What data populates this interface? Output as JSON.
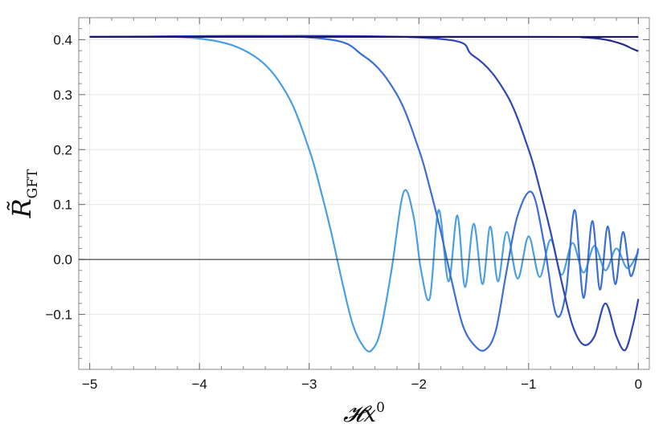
{
  "chart_data": {
    "type": "line",
    "xlabel": "𝓗x",
    "xlabel_sup": "0",
    "ylabel": "R̃",
    "ylabel_sub": "GFT",
    "xlim": [
      -5.1,
      0.1
    ],
    "ylim": [
      -0.2,
      0.44
    ],
    "x_ticks": [
      -5,
      -4,
      -3,
      -2,
      -1,
      0
    ],
    "x_tick_labels": [
      "−5",
      "−4",
      "−3",
      "−2",
      "−1",
      "0"
    ],
    "y_ticks": [
      -0.1,
      0.0,
      0.1,
      0.2,
      0.3,
      0.4
    ],
    "y_tick_labels": [
      "−0.1",
      "0.0",
      "0.1",
      "0.2",
      "0.3",
      "0.4"
    ],
    "grid": true,
    "zero_line": true,
    "series": [
      {
        "color": "#4a9fe3",
        "plateau": 0.405,
        "x": [
          -5,
          -4,
          -3.5,
          -3.2,
          -3.0,
          -2.9,
          -2.8,
          -2.7,
          -2.6,
          -2.5,
          -2.43,
          -2.35,
          -2.25,
          -2.14,
          -2.05,
          -1.98,
          -1.9,
          -1.82,
          -1.73,
          -1.65,
          -1.58,
          -1.5,
          -1.42,
          -1.35,
          -1.28,
          -1.2,
          -1.1,
          -1.0,
          -0.9,
          -0.8,
          -0.7,
          -0.6,
          -0.5,
          -0.4,
          -0.3,
          -0.2,
          -0.1,
          0
        ],
        "y": [
          0.405,
          0.402,
          0.37,
          0.3,
          0.2,
          0.13,
          0.05,
          -0.04,
          -0.12,
          -0.16,
          -0.165,
          -0.13,
          -0.02,
          0.122,
          0.08,
          -0.02,
          -0.07,
          0.09,
          -0.04,
          0.08,
          -0.05,
          0.065,
          -0.045,
          0.06,
          -0.04,
          0.05,
          -0.035,
          0.042,
          -0.032,
          0.036,
          -0.028,
          0.03,
          -0.024,
          0.025,
          -0.02,
          0.02,
          -0.016,
          0.014
        ]
      },
      {
        "color": "#3c6fd6",
        "plateau": 0.405,
        "x": [
          -5,
          -3,
          -2.5,
          -2.2,
          -2.0,
          -1.9,
          -1.8,
          -1.7,
          -1.6,
          -1.5,
          -1.4,
          -1.3,
          -1.2,
          -1.1,
          -0.97,
          -0.86,
          -0.75,
          -0.66,
          -0.58,
          -0.5,
          -0.42,
          -0.35,
          -0.28,
          -0.21,
          -0.14,
          -0.07,
          0
        ],
        "y": [
          0.405,
          0.404,
          0.37,
          0.3,
          0.2,
          0.13,
          0.05,
          -0.04,
          -0.12,
          -0.155,
          -0.165,
          -0.13,
          -0.02,
          0.08,
          0.122,
          0.03,
          -0.1,
          -0.06,
          0.09,
          -0.07,
          0.07,
          -0.055,
          0.06,
          -0.045,
          0.05,
          -0.03,
          0.02
        ]
      },
      {
        "color": "#3346b8",
        "plateau": 0.405,
        "x": [
          -5,
          -2,
          -1.5,
          -1.2,
          -1.0,
          -0.9,
          -0.8,
          -0.7,
          -0.6,
          -0.5,
          -0.4,
          -0.3,
          -0.2,
          -0.12,
          -0.05,
          0
        ],
        "y": [
          0.405,
          0.404,
          0.37,
          0.3,
          0.2,
          0.13,
          0.05,
          -0.04,
          -0.12,
          -0.155,
          -0.14,
          -0.08,
          -0.14,
          -0.165,
          -0.12,
          -0.072
        ]
      },
      {
        "color": "#2a2a8e",
        "plateau": 0.405,
        "x": [
          -5,
          -1,
          -0.5,
          -0.3,
          -0.15,
          -0.05,
          0
        ],
        "y": [
          0.405,
          0.405,
          0.404,
          0.4,
          0.392,
          0.383,
          0.379
        ]
      },
      {
        "color": "#1c1464",
        "plateau": 0.405,
        "x": [
          -5,
          0
        ],
        "y": [
          0.405,
          0.405
        ]
      }
    ]
  }
}
